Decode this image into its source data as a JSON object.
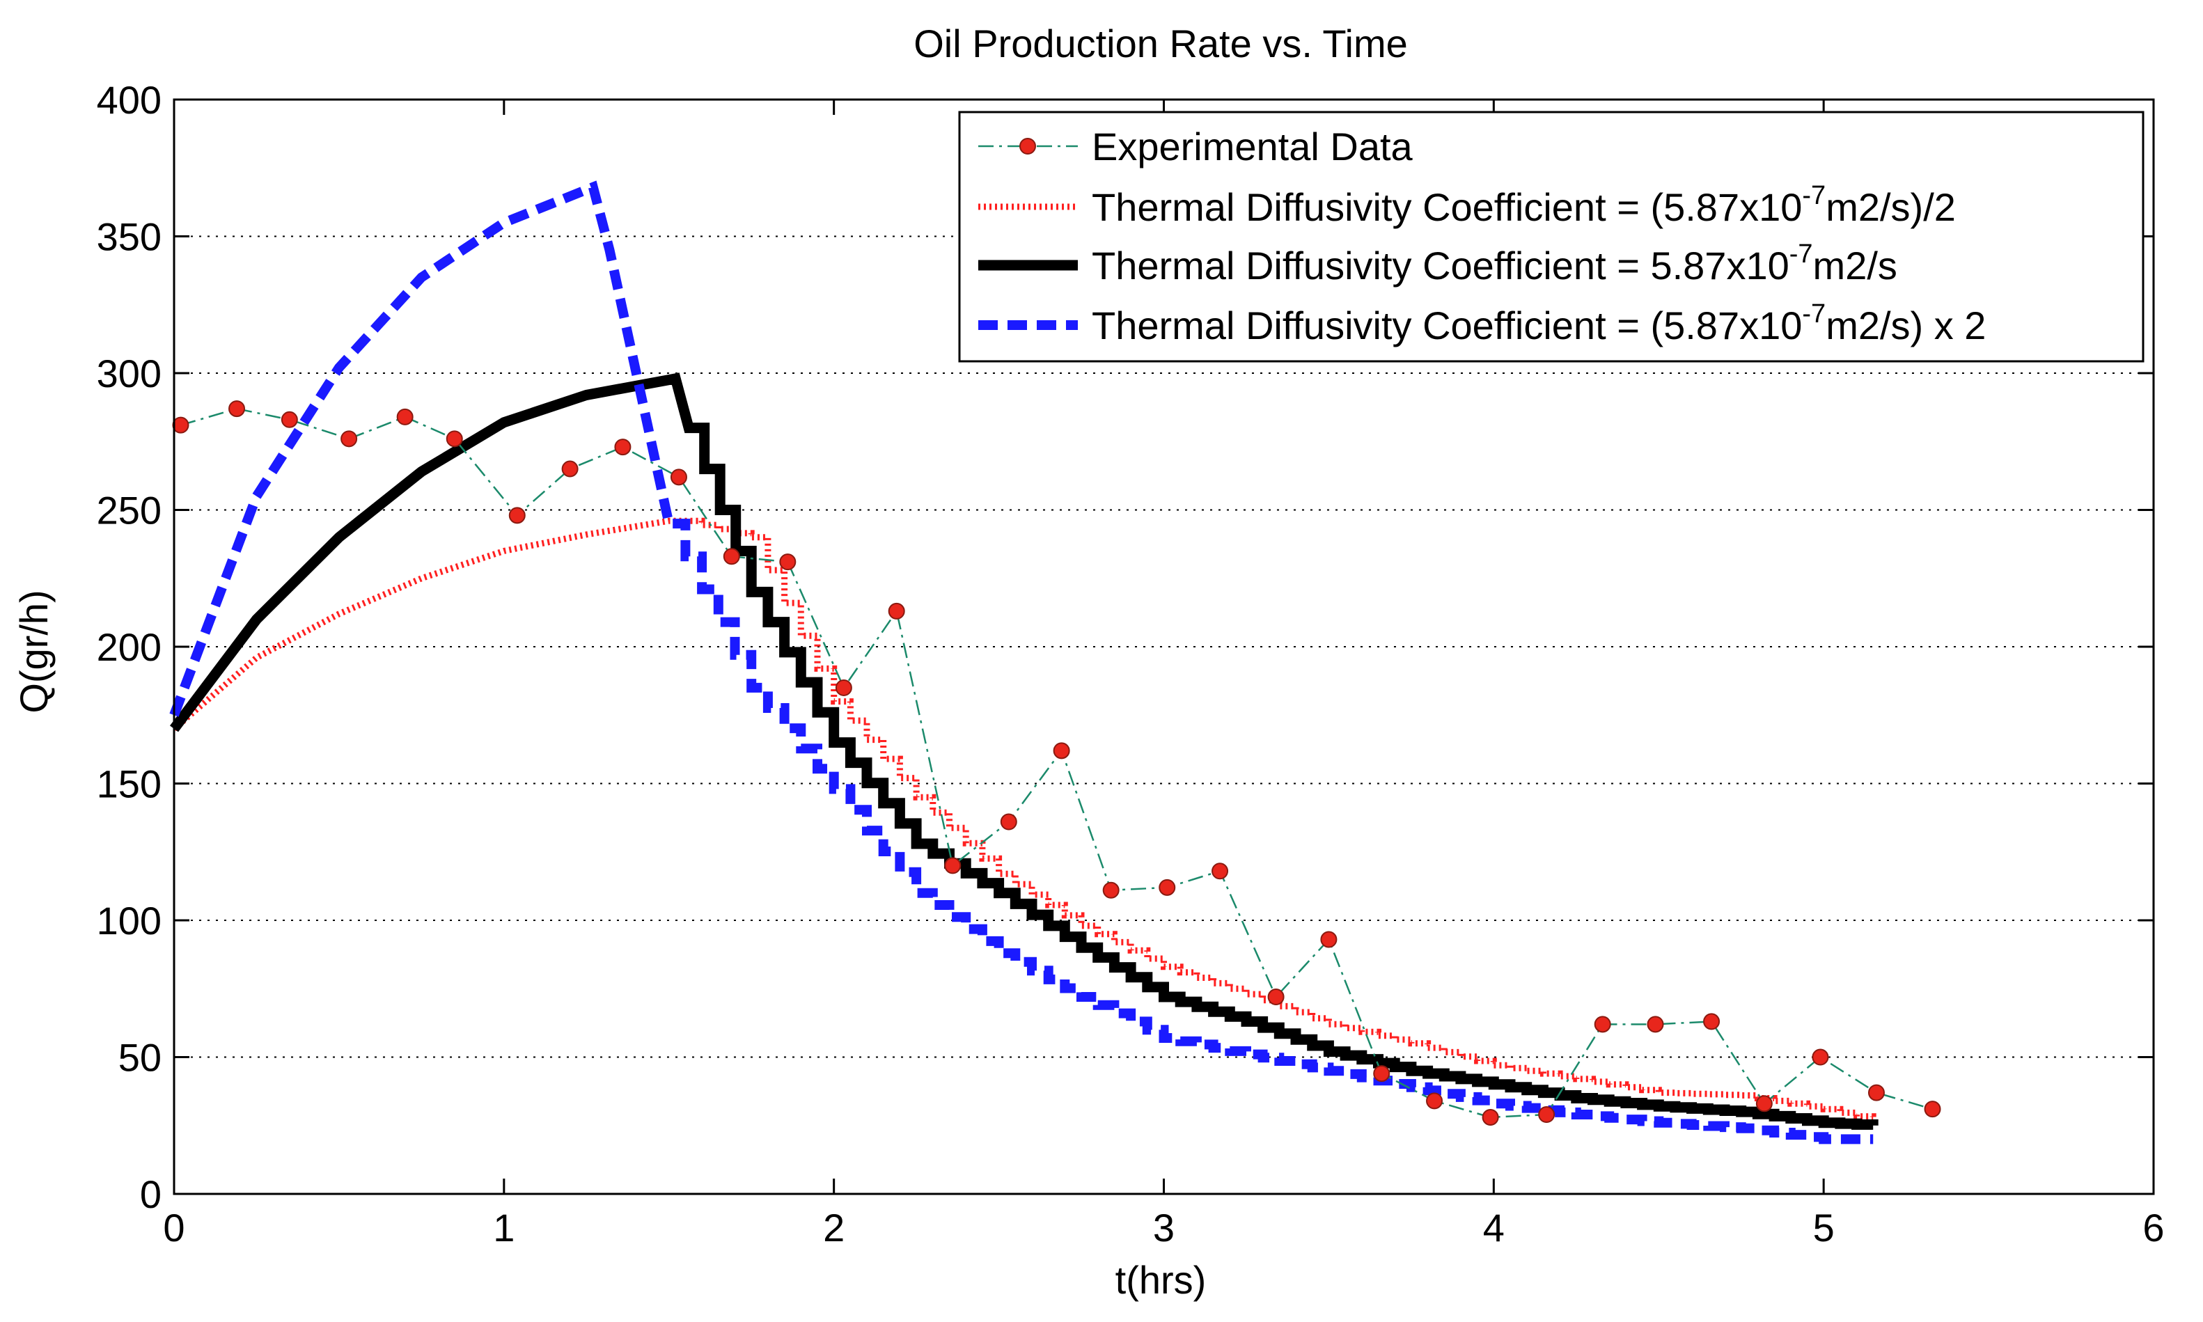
{
  "chart_data": {
    "type": "line",
    "title": "Oil Production Rate vs. Time",
    "xlabel": "t(hrs)",
    "ylabel": "Q(gr/h)",
    "xlim": [
      0,
      6
    ],
    "ylim": [
      0,
      400
    ],
    "xticks": [
      0,
      1,
      2,
      3,
      4,
      5,
      6
    ],
    "yticks": [
      0,
      50,
      100,
      150,
      200,
      250,
      300,
      350,
      400
    ],
    "grid": "horizontal-dotted",
    "legend_position": "top-right",
    "legend": {
      "experimental": "Experimental Data",
      "half": {
        "prefix": "Thermal Diffusivity Coefficient = (5.87x10",
        "exp": "-7",
        "suffix": "m2/s)/2"
      },
      "base": {
        "prefix": "Thermal Diffusivity Coefficient = 5.87x10",
        "exp": "-7",
        "suffix": "m2/s"
      },
      "double": {
        "prefix": "Thermal Diffusivity Coefficient = (5.87x10",
        "exp": "-7",
        "suffix": "m2/s) x 2"
      }
    },
    "colors": {
      "experimental_line": "#1b8a6b",
      "experimental_marker": "#e8261c",
      "half": "#ff2020",
      "base": "#000000",
      "double": "#1a1aff"
    },
    "series": [
      {
        "name": "Experimental Data",
        "style": "dash-dot-marker",
        "x": [
          0.02,
          0.19,
          0.35,
          0.53,
          0.7,
          0.85,
          1.04,
          1.2,
          1.36,
          1.53,
          1.69,
          1.86,
          2.03,
          2.19,
          2.36,
          2.53,
          2.69,
          2.84,
          3.01,
          3.17,
          3.34,
          3.5,
          3.66,
          3.82,
          3.99,
          4.16,
          4.33,
          4.49,
          4.66,
          4.82,
          4.99,
          5.16,
          5.33
        ],
        "values": [
          281,
          287,
          283,
          276,
          284,
          276,
          248,
          265,
          273,
          262,
          233,
          231,
          185,
          213,
          120,
          136,
          162,
          111,
          112,
          118,
          72,
          93,
          44,
          34,
          28,
          29,
          62,
          62,
          63,
          33,
          50,
          37,
          31
        ]
      },
      {
        "name": "Thermal Diffusivity Coefficient = (5.87x10-7m2/s)/2",
        "style": "dotted",
        "x": [
          0,
          0.25,
          0.5,
          0.75,
          1.0,
          1.25,
          1.5,
          1.55,
          1.75,
          2.0,
          2.25,
          2.5,
          2.75,
          3.0,
          3.25,
          3.5,
          3.75,
          4.0,
          4.25,
          4.5,
          4.75,
          5.0,
          5.15
        ],
        "values": [
          170,
          196,
          212,
          225,
          235,
          241,
          246,
          246,
          240,
          180,
          145,
          117,
          98,
          83,
          73,
          62,
          55,
          47,
          42,
          37,
          36,
          31,
          27
        ]
      },
      {
        "name": "Thermal Diffusivity Coefficient = 5.87x10-7m2/s",
        "style": "solid-stepped",
        "x": [
          0,
          0.25,
          0.5,
          0.75,
          1.0,
          1.25,
          1.52,
          1.56,
          1.75,
          2.0,
          2.25,
          2.5,
          2.75,
          3.0,
          3.25,
          3.5,
          3.75,
          4.0,
          4.25,
          4.5,
          4.75,
          5.0,
          5.15
        ],
        "values": [
          170,
          210,
          240,
          264,
          282,
          292,
          298,
          280,
          220,
          165,
          128,
          110,
          90,
          72,
          63,
          52,
          45,
          40,
          35,
          32,
          30,
          26,
          25
        ]
      },
      {
        "name": "Thermal Diffusivity Coefficient = (5.87x10-7m2/s) x 2",
        "style": "dashed-stepped",
        "x": [
          0,
          0.25,
          0.5,
          0.75,
          1.0,
          1.27,
          1.32,
          1.5,
          1.75,
          2.0,
          2.25,
          2.5,
          2.75,
          3.0,
          3.25,
          3.5,
          3.75,
          4.0,
          4.25,
          4.5,
          4.75,
          5.0,
          5.15
        ],
        "values": [
          175,
          255,
          302,
          335,
          355,
          368,
          345,
          245,
          185,
          148,
          110,
          88,
          72,
          57,
          51,
          45,
          39,
          33,
          29,
          26,
          24,
          20,
          20
        ]
      }
    ]
  }
}
